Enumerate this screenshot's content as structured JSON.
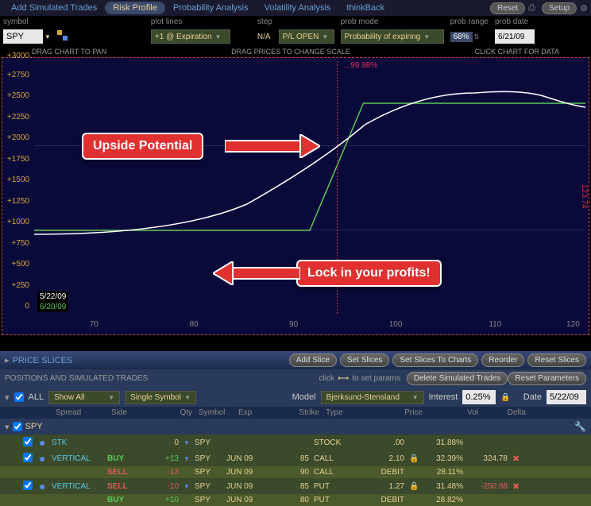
{
  "tabs": {
    "items": [
      "Add Simulated Trades",
      "Risk Profile",
      "Probability Analysis",
      "Volatility Analysis",
      "thinkBack"
    ],
    "active_index": 1,
    "reset": "Reset",
    "setup": "Setup"
  },
  "controls": {
    "symbol": {
      "label": "symbol",
      "value": "SPY"
    },
    "plot_lines": {
      "label": "plot lines",
      "value": "+1 @ Expiration"
    },
    "step": {
      "label": "step",
      "na": "N/A",
      "value": "P/L OPEN"
    },
    "prob_mode": {
      "label": "prob mode",
      "value": "Probability of expiring"
    },
    "prob_range": {
      "label": "prob range",
      "value": "68%"
    },
    "prob_date": {
      "label": "prob date",
      "value": "6/21/09"
    }
  },
  "chart": {
    "drag_pan": "DRAG CHART TO PAN",
    "drag_scale": "DRAG PRICES TO CHANGE SCALE",
    "click_data": "CLICK CHART FOR DATA",
    "y_ticks": [
      0,
      250,
      500,
      750,
      1000,
      1250,
      1500,
      1750,
      2000,
      2250,
      2500,
      2750,
      3000
    ],
    "x_ticks": [
      70,
      80,
      90,
      100,
      110,
      120
    ],
    "legend_dates": {
      "d1": "5/22/09",
      "d2": "6/20/09"
    },
    "prob_text": "...99.98%",
    "side_num": "123.74",
    "callouts": {
      "upside": "Upside Potential",
      "lock": "Lock in your profits!"
    },
    "colors": {
      "bg": "#0a0a3a",
      "border": "#c44",
      "white_curve": "#ffffff",
      "green_curve": "#5ac85a",
      "y_label": "#d4a83a",
      "callout_bg": "#e03030"
    }
  },
  "slices": {
    "title": "PRICE SLICES",
    "btns": [
      "Add Slice",
      "Set Slices",
      "Set Slices To Charts",
      "Reorder",
      "Reset Slices"
    ]
  },
  "positions": {
    "title": "POSITIONS AND SIMULATED TRADES",
    "hint": "click",
    "hint2": "to set params",
    "btns": [
      "Delete Simulated Trades",
      "Reset Parameters"
    ],
    "all": "ALL",
    "show_all": "Show All",
    "single": "Single Symbol",
    "model_label": "Model",
    "model": "Bjerksund-Stensland",
    "interest_label": "Interest",
    "interest": "0.25%",
    "date_label": "Date",
    "date": "5/22/09",
    "cols": [
      "Spread",
      "Side",
      "Qty",
      "Symbol",
      "Exp",
      "Strike",
      "Type",
      "Price",
      "Vol",
      "Delta"
    ],
    "ticker": "SPY",
    "rows": [
      {
        "spread": "STK",
        "qty": "0",
        "sym": "SPY",
        "type": "STOCK",
        "price": ".00",
        "vol": "31.88%",
        "dot": true
      },
      {
        "spread": "VERTICAL",
        "side": "BUY",
        "qty": "+13",
        "sym": "SPY",
        "exp": "JUN 09",
        "strike": "85",
        "type": "CALL",
        "price": "2.10",
        "vol": "32.39%",
        "delta": "324.78",
        "dot": true,
        "lock": true,
        "x": true
      },
      {
        "side": "SELL",
        "qty": "-13",
        "sym": "SPY",
        "exp": "JUN 09",
        "strike": "90",
        "type": "CALL",
        "price": "DEBIT",
        "vol": "28.11%"
      },
      {
        "spread": "VERTICAL",
        "side": "SELL",
        "qty": "-10",
        "sym": "SPY",
        "exp": "JUN 09",
        "strike": "85",
        "type": "PUT",
        "price": "1.27",
        "vol": "31.48%",
        "delta": "-250.68",
        "dot": true,
        "lock": true,
        "x": true
      },
      {
        "side": "BUY",
        "qty": "+10",
        "sym": "SPY",
        "exp": "JUN 09",
        "strike": "80",
        "type": "PUT",
        "price": "DEBIT",
        "vol": "28.82%"
      }
    ]
  }
}
